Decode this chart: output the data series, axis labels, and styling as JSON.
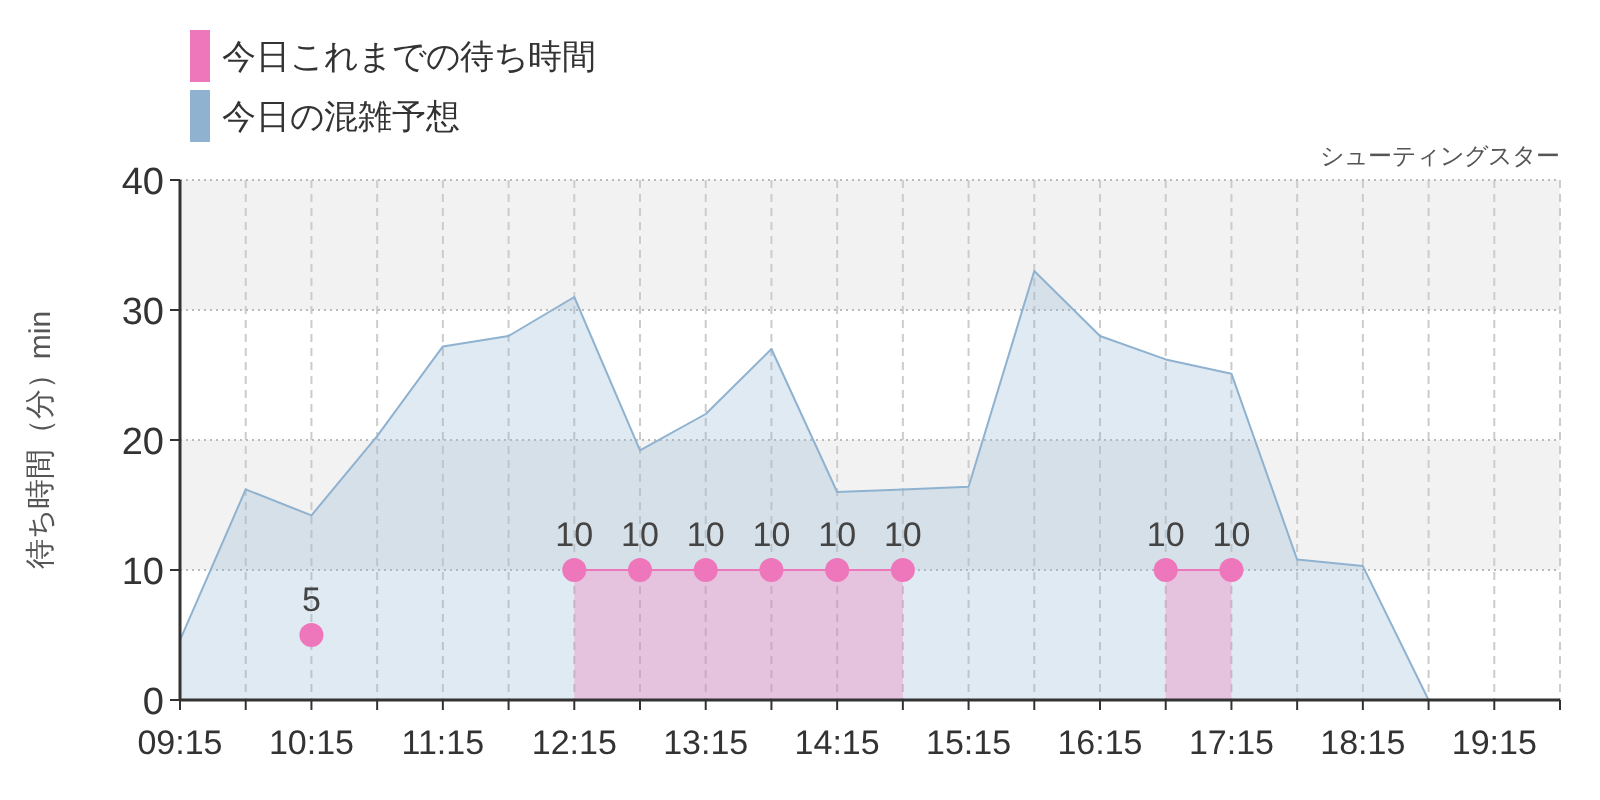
{
  "chart_data": {
    "type": "area",
    "title": "シューティングスター",
    "ylabel": "待ち時間（分）min",
    "x": [
      9.25,
      9.75,
      10.25,
      10.75,
      11.25,
      11.75,
      12.25,
      12.75,
      13.25,
      13.75,
      14.25,
      14.75,
      15.25,
      15.75,
      16.25,
      16.75,
      17.25,
      17.75,
      18.25,
      18.75,
      19.25,
      19.75
    ],
    "series": [
      {
        "name": "今日これまでの待ち時間",
        "color": "#ee77bb",
        "marker": "circle",
        "data_labels": true,
        "values": [
          null,
          null,
          null,
          null,
          null,
          null,
          10,
          10,
          10,
          10,
          10,
          10,
          null,
          null,
          null,
          10,
          10,
          null,
          null,
          null,
          null,
          null
        ]
      },
      {
        "name": "今日の混雑予想",
        "color": "#8fb2d0",
        "marker": "none",
        "values": [
          4.6,
          16.2,
          14.2,
          20.3,
          27.2,
          28,
          31,
          19.2,
          22,
          27,
          16,
          16.2,
          16.4,
          33,
          28,
          26.2,
          25.1,
          10.8,
          10.3,
          0,
          0,
          0
        ]
      },
      {
        "type": "scatter",
        "color": "#ee77bb",
        "marker": "circle",
        "data_labels": true,
        "x": [
          10.25
        ],
        "values": [
          5
        ]
      }
    ],
    "xlim": [
      9.25,
      19.75
    ],
    "xticks": [
      {
        "value": 9.25,
        "label": "09:15"
      },
      {
        "value": 9.75,
        "label": null
      },
      {
        "value": 10.25,
        "label": "10:15"
      },
      {
        "value": 10.75,
        "label": null
      },
      {
        "value": 11.25,
        "label": "11:15"
      },
      {
        "value": 11.75,
        "label": null
      },
      {
        "value": 12.25,
        "label": "12:15"
      },
      {
        "value": 12.75,
        "label": null
      },
      {
        "value": 13.25,
        "label": "13:15"
      },
      {
        "value": 13.75,
        "label": null
      },
      {
        "value": 14.25,
        "label": "14:15"
      },
      {
        "value": 14.75,
        "label": null
      },
      {
        "value": 15.25,
        "label": "15:15"
      },
      {
        "value": 15.75,
        "label": null
      },
      {
        "value": 16.25,
        "label": "16:15"
      },
      {
        "value": 16.75,
        "label": null
      },
      {
        "value": 17.25,
        "label": "17:15"
      },
      {
        "value": 17.75,
        "label": null
      },
      {
        "value": 18.25,
        "label": "18:15"
      },
      {
        "value": 18.75,
        "label": null
      },
      {
        "value": 19.25,
        "label": "19:15"
      },
      {
        "value": 19.75,
        "label": null
      }
    ],
    "ylim": [
      0,
      40
    ],
    "yticks": [
      0,
      10,
      20,
      30,
      40
    ],
    "bands": [
      {
        "axis": "y",
        "from": 10,
        "to": 20,
        "color": "#f2f2f2"
      },
      {
        "axis": "y",
        "from": 30,
        "to": 40,
        "color": "#f2f2f2"
      }
    ],
    "grid": true,
    "legend": "top left"
  }
}
